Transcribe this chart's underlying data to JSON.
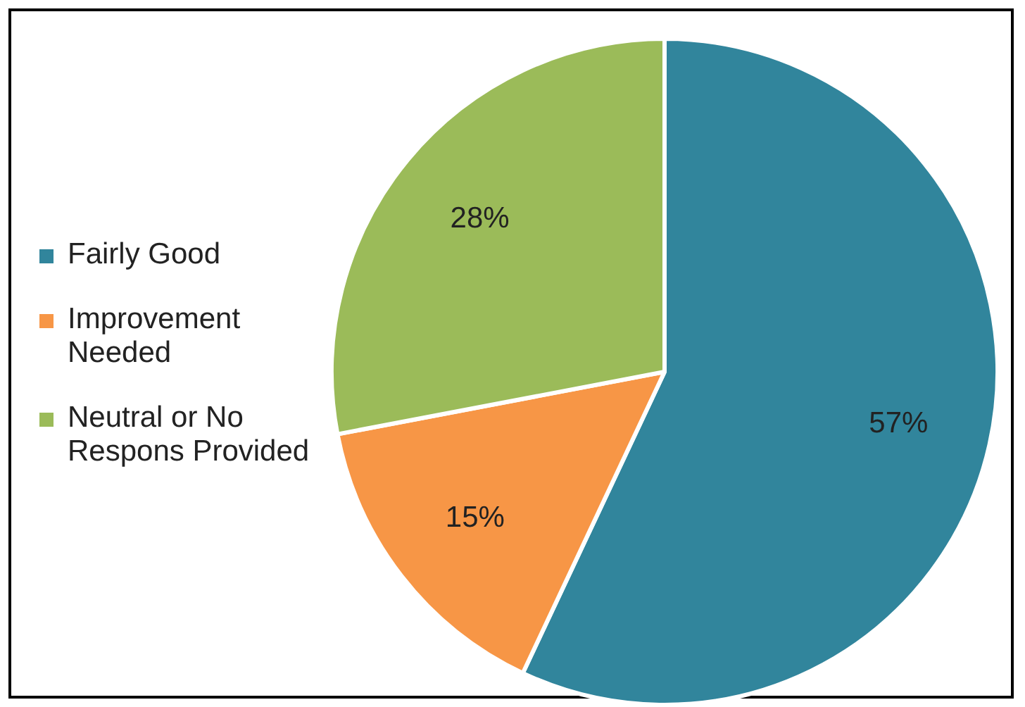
{
  "chart_data": {
    "type": "pie",
    "categories": [
      "Fairly Good",
      "Improvement Needed",
      "Neutral or No Respons Provided"
    ],
    "values": [
      57,
      15,
      28
    ],
    "colors": [
      "#31859c",
      "#f79646",
      "#9bbb59"
    ],
    "value_labels": [
      "57%",
      "15%",
      "28%"
    ],
    "legend": "left"
  }
}
